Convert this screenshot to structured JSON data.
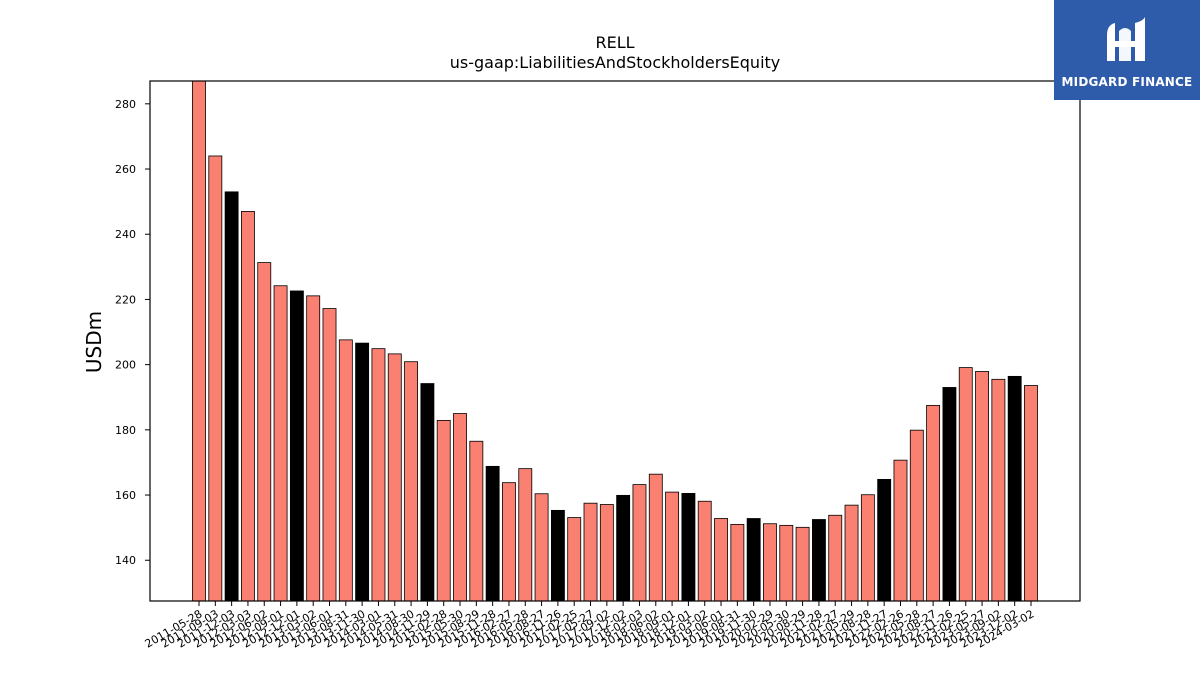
{
  "brand": {
    "name": "MIDGARD FINANCE",
    "color": "#2e5caa"
  },
  "chart_data": {
    "type": "bar",
    "title": "RELL",
    "subtitle": "us-gaap:LiabilitiesAndStockholdersEquity",
    "xlabel": "",
    "ylabel": "USDm",
    "ylim": [
      127.5,
      287
    ],
    "yticks": [
      140,
      160,
      180,
      200,
      220,
      240,
      260,
      280
    ],
    "grid": false,
    "colors": {
      "default": "#fa8072",
      "highlight": "#000000"
    },
    "categories": [
      "2011-05-28",
      "2011-09-03",
      "2011-12-03",
      "2012-03-03",
      "2012-06-02",
      "2012-09-01",
      "2012-12-01",
      "2013-03-02",
      "2013-06-01",
      "2013-08-31",
      "2013-11-30",
      "2014-03-01",
      "2014-05-31",
      "2014-08-30",
      "2014-11-29",
      "2015-02-28",
      "2015-05-30",
      "2015-08-29",
      "2015-11-28",
      "2016-02-27",
      "2016-05-28",
      "2016-08-27",
      "2016-11-26",
      "2017-02-25",
      "2017-05-27",
      "2017-09-02",
      "2017-12-02",
      "2018-03-03",
      "2018-06-02",
      "2018-09-01",
      "2018-12-01",
      "2019-03-02",
      "2019-06-01",
      "2019-08-31",
      "2019-11-30",
      "2020-02-29",
      "2020-05-30",
      "2020-08-29",
      "2020-11-28",
      "2021-02-27",
      "2021-05-29",
      "2021-08-28",
      "2021-11-27",
      "2022-02-26",
      "2022-05-28",
      "2022-08-27",
      "2022-11-26",
      "2023-02-25",
      "2023-05-27",
      "2023-09-02",
      "2023-12-02",
      "2024-03-02"
    ],
    "values": [
      287,
      264,
      253,
      247,
      231.3,
      224.2,
      222.6,
      221.1,
      217.2,
      207.6,
      206.6,
      204.9,
      203.3,
      200.9,
      194.2,
      182.9,
      185,
      176.5,
      168.8,
      163.8,
      168.1,
      160.4,
      155.3,
      153.1,
      157.5,
      157.1,
      159.9,
      163.2,
      166.4,
      160.9,
      160.5,
      158.1,
      152.8,
      151,
      152.8,
      151.2,
      150.7,
      150.1,
      152.5,
      153.8,
      156.9,
      160.1,
      164.8,
      170.7,
      179.9,
      187.5,
      193,
      199.1,
      197.9,
      195.5,
      196.4,
      193.6
    ],
    "highlight_index": [
      2,
      6,
      10,
      14,
      18,
      22,
      26,
      30,
      34,
      38,
      42,
      46,
      50
    ]
  }
}
